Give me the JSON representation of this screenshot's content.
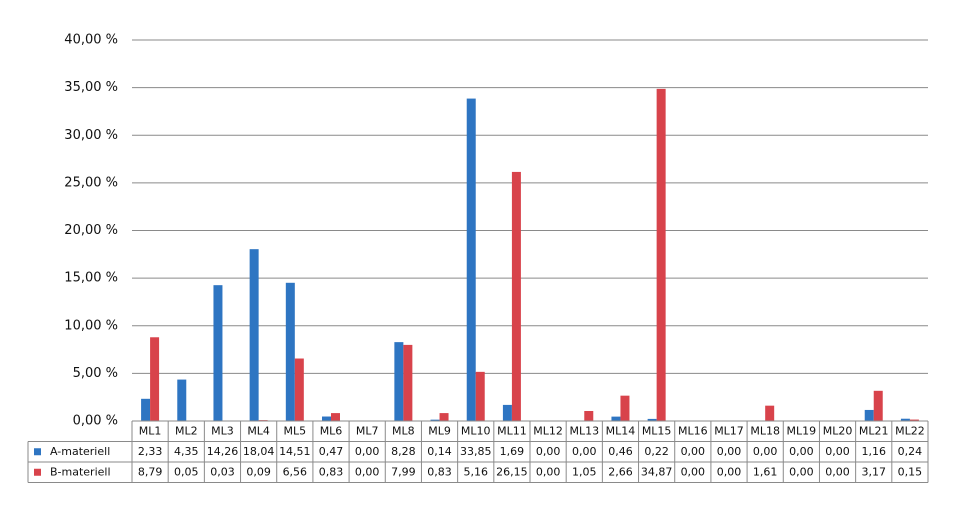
{
  "chart_data": {
    "type": "bar",
    "categories": [
      "ML1",
      "ML2",
      "ML3",
      "ML4",
      "ML5",
      "ML6",
      "ML7",
      "ML8",
      "ML9",
      "ML10",
      "ML11",
      "ML12",
      "ML13",
      "ML14",
      "ML15",
      "ML16",
      "ML17",
      "ML18",
      "ML19",
      "ML20",
      "ML21",
      "ML22"
    ],
    "series": [
      {
        "name": "A-materiell",
        "color": "#2e75c2",
        "values": [
          2.33,
          4.35,
          14.26,
          18.04,
          14.51,
          0.47,
          0.0,
          8.28,
          0.14,
          33.85,
          1.69,
          0.0,
          0.0,
          0.46,
          0.22,
          0.0,
          0.0,
          0.0,
          0.0,
          0.0,
          1.16,
          0.24
        ],
        "value_labels": [
          "2,33",
          "4,35",
          "14,26",
          "18,04",
          "14,51",
          "0,47",
          "0,00",
          "8,28",
          "0,14",
          "33,85",
          "1,69",
          "0,00",
          "0,00",
          "0,46",
          "0,22",
          "0,00",
          "0,00",
          "0,00",
          "0,00",
          "0,00",
          "1,16",
          "0,24"
        ]
      },
      {
        "name": "B-materiell",
        "color": "#d8434b",
        "values": [
          8.79,
          0.05,
          0.03,
          0.09,
          6.56,
          0.83,
          0.0,
          7.99,
          0.83,
          5.16,
          26.15,
          0.0,
          1.05,
          2.66,
          34.87,
          0.0,
          0.0,
          1.61,
          0.0,
          0.0,
          3.17,
          0.15
        ],
        "value_labels": [
          "8,79",
          "0,05",
          "0,03",
          "0,09",
          "6,56",
          "0,83",
          "0,00",
          "7,99",
          "0,83",
          "5,16",
          "26,15",
          "0,00",
          "1,05",
          "2,66",
          "34,87",
          "0,00",
          "0,00",
          "1,61",
          "0,00",
          "0,00",
          "3,17",
          "0,15"
        ]
      }
    ],
    "ylim": [
      0,
      40
    ],
    "yticks": [
      {
        "value": 0,
        "label": "0,00 %"
      },
      {
        "value": 5,
        "label": "5,00 %"
      },
      {
        "value": 10,
        "label": "10,00 %"
      },
      {
        "value": 15,
        "label": "15,00 %"
      },
      {
        "value": 20,
        "label": "20,00 %"
      },
      {
        "value": 25,
        "label": "25,00 %"
      },
      {
        "value": 30,
        "label": "30,00 %"
      },
      {
        "value": 35,
        "label": "35,00 %"
      },
      {
        "value": 40,
        "label": "40,00 %"
      }
    ],
    "grid": true
  }
}
